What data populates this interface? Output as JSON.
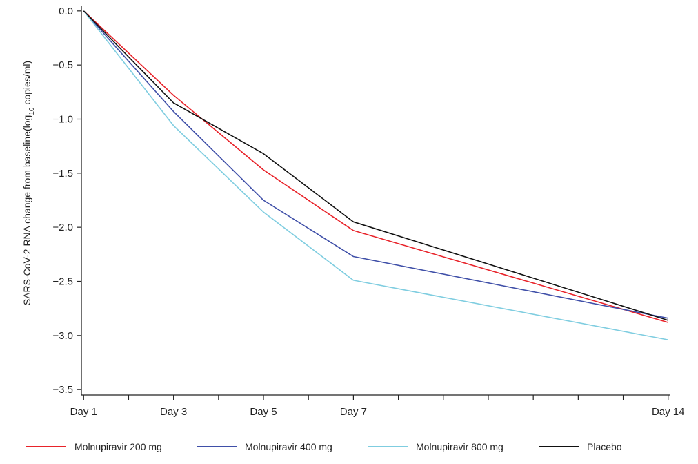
{
  "chart_data": {
    "type": "line",
    "ylabel_parts": [
      "SARS-CoV-2 RNA change from baseline(log",
      "10",
      " copies/ml)"
    ],
    "x": [
      1,
      3,
      5,
      7,
      14
    ],
    "x_tick_labels": [
      {
        "x": 1,
        "label": "Day 1"
      },
      {
        "x": 3,
        "label": "Day 3"
      },
      {
        "x": 5,
        "label": "Day 5"
      },
      {
        "x": 7,
        "label": "Day 7"
      },
      {
        "x": 14,
        "label": "Day 14"
      }
    ],
    "x_minor_ticks": [
      2,
      4,
      6,
      8,
      9,
      10,
      11,
      12,
      13
    ],
    "xlim": [
      0.95,
      14.05
    ],
    "ylim": [
      -3.55,
      0.05
    ],
    "y_ticks": [
      0.0,
      -0.5,
      -1.0,
      -1.5,
      -2.0,
      -2.5,
      -3.0,
      -3.5
    ],
    "y_tick_labels": [
      "0.0",
      "−0.5",
      "−1.0",
      "−1.5",
      "−2.0",
      "−2.5",
      "−3.0",
      "−3.5"
    ],
    "grid": false,
    "legend_position": "bottom",
    "series": [
      {
        "name": "Molnupiravir 200 mg",
        "color": "#e8232a",
        "values": [
          0.0,
          -0.78,
          -1.47,
          -2.03,
          -2.88
        ]
      },
      {
        "name": "Molnupiravir 400 mg",
        "color": "#3f4fa8",
        "values": [
          0.0,
          -0.93,
          -1.75,
          -2.27,
          -2.84
        ]
      },
      {
        "name": "Molnupiravir 800 mg",
        "color": "#7fcde0",
        "values": [
          0.0,
          -1.06,
          -1.86,
          -2.49,
          -3.04
        ]
      },
      {
        "name": "Placebo",
        "color": "#111111",
        "values": [
          0.0,
          -0.85,
          -1.32,
          -1.95,
          -2.86
        ]
      }
    ]
  }
}
